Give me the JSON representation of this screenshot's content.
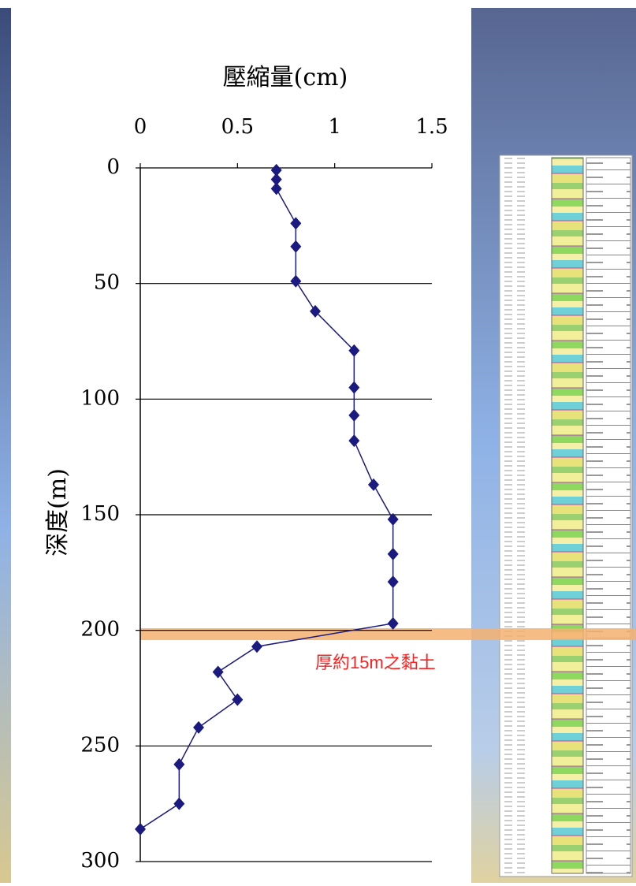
{
  "chart_data": {
    "type": "line",
    "title": "壓縮量(cm)",
    "y_label": "深度(m)",
    "annotation": "厚約15m之黏土",
    "x": [
      0.7,
      0.7,
      0.7,
      0.8,
      0.8,
      0.8,
      0.9,
      1.1,
      1.1,
      1.1,
      1.1,
      1.2,
      1.3,
      1.3,
      1.3,
      1.3,
      0.6,
      0.4,
      0.5,
      0.3,
      0.2,
      0.2,
      0
    ],
    "y": [
      1,
      5,
      9,
      24,
      34,
      49,
      62,
      79,
      95,
      107,
      118,
      137,
      152,
      167,
      179,
      197,
      207,
      218,
      230,
      242,
      258,
      275,
      286
    ],
    "color": "#1a1a80",
    "xlim": [
      0,
      1.5
    ],
    "xticks": [
      0,
      0.5,
      1,
      1.5
    ],
    "ylim": [
      0,
      300
    ],
    "yticks": [
      0,
      50,
      100,
      150,
      200,
      250,
      300
    ],
    "y_inverted": true,
    "grid": true
  }
}
